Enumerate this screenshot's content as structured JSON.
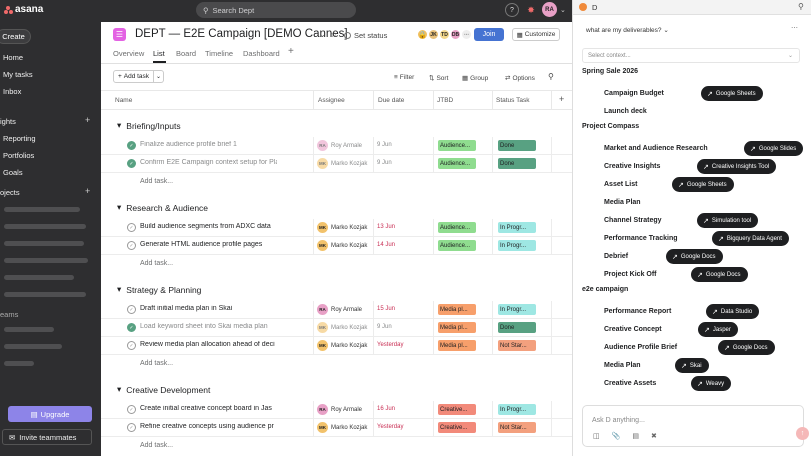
{
  "topbar": {
    "brand": "asana",
    "search_placeholder": "Search Dept",
    "help": "?",
    "user_initials": "RA"
  },
  "sidebar": {
    "create": "Create",
    "nav": [
      "Home",
      "My tasks",
      "Inbox"
    ],
    "insights_label": "ights",
    "insights": [
      "Reporting",
      "Portfolios",
      "Goals"
    ],
    "projects_label": "ojects",
    "teams_label": "eams",
    "upgrade": "Upgrade",
    "invite": "Invite teammates"
  },
  "project": {
    "title": "DEPT — E2E Campaign [DEMO Cannes]",
    "set_status": "Set status",
    "members": [
      "JK",
      "TD",
      "DB"
    ],
    "join": "Join",
    "customize": "Customize",
    "tabs": [
      "Overview",
      "List",
      "Board",
      "Timeline",
      "Dashboard"
    ]
  },
  "toolbar": {
    "add_task": "Add task",
    "filter": "Filter",
    "sort": "Sort",
    "group": "Group",
    "options": "Options"
  },
  "columns": [
    "Name",
    "Assignee",
    "Due date",
    "JTBD",
    "Status Task"
  ],
  "sections": [
    {
      "title": "Briefing/Inputs",
      "tasks": [
        {
          "name": "Finalize audience profile brief",
          "extra": "1",
          "done": true,
          "initials": "RA",
          "assignee": "Roy Armale",
          "due": "9 Jun",
          "red": false,
          "jtbd": "Audience...",
          "status": "Done"
        },
        {
          "name": "Confirm E2E Campaign context setup for Pla",
          "extra": "",
          "done": true,
          "initials": "MK",
          "assignee": "Marko Kozjak",
          "due": "9 Jun",
          "red": false,
          "jtbd": "Audience...",
          "status": "Done"
        }
      ]
    },
    {
      "title": "Research & Audience",
      "tasks": [
        {
          "name": "Build audience segments from ADXC data",
          "extra": "",
          "done": false,
          "initials": "MK",
          "assignee": "Marko Kozjak",
          "due": "13 Jun",
          "red": true,
          "jtbd": "Audience...",
          "status": "In Progr..."
        },
        {
          "name": "Generate HTML audience profile pages",
          "extra": "",
          "done": false,
          "initials": "MK",
          "assignee": "Marko Kozjak",
          "due": "14 Jun",
          "red": true,
          "jtbd": "Audience...",
          "status": "In Progr..."
        }
      ]
    },
    {
      "title": "Strategy & Planning",
      "tasks": [
        {
          "name": "Draft initial media plan in Skai",
          "extra": "",
          "done": false,
          "initials": "RA",
          "assignee": "Roy Armale",
          "due": "15 Jun",
          "red": true,
          "jtbd": "Media pl...",
          "status": "In Progr..."
        },
        {
          "name": "Load keyword sheet into Skai media plan",
          "extra": "",
          "done": true,
          "initials": "MK",
          "assignee": "Marko Kozjak",
          "due": "9 Jun",
          "red": false,
          "jtbd": "Media pl...",
          "status": "Done"
        },
        {
          "name": "Review media plan allocation ahead of deci",
          "extra": "",
          "done": false,
          "initials": "MK",
          "assignee": "Marko Kozjak",
          "due": "Yesterday",
          "red": true,
          "jtbd": "Media pl...",
          "status": "Not Star..."
        }
      ]
    },
    {
      "title": "Creative Development",
      "tasks": [
        {
          "name": "Create initial creative concept board in Jas",
          "extra": "",
          "done": false,
          "initials": "RA",
          "assignee": "Roy Armale",
          "due": "16 Jun",
          "red": true,
          "jtbd": "Creative...",
          "status": "In Progr..."
        },
        {
          "name": "Refine creative concepts using audience pr",
          "extra": "",
          "done": false,
          "initials": "MK",
          "assignee": "Marko Kozjak",
          "due": "Yesterday",
          "red": true,
          "jtbd": "Creative...",
          "status": "Not Star..."
        }
      ]
    }
  ],
  "add_task_inline": "Add task...",
  "colors": {
    "done": "#58a182",
    "in_progress": "#9ee7e3",
    "not_started": "#f3a07e",
    "audience": "#8fdc8f",
    "media": "#f79f6b",
    "creative": "#f28a7a",
    "red_due": "#c92f54"
  },
  "panel": {
    "title": "D",
    "question": "what are my deliverables?",
    "context_placeholder": "Select context...",
    "groups": [
      {
        "title": "Spring Sale 2026",
        "items": [
          {
            "name": "Campaign Budget",
            "tool": "Google Sheets"
          },
          {
            "name": "Launch deck",
            "tool": ""
          }
        ]
      },
      {
        "title": "Project Compass",
        "items": [
          {
            "name": "Market and Audience Research",
            "tool": "Google Slides"
          },
          {
            "name": "Creative Insights",
            "tool": "Creative Insights Tool"
          },
          {
            "name": "Asset List",
            "tool": "Google Sheets"
          },
          {
            "name": "Media Plan",
            "tool": ""
          },
          {
            "name": "Channel Strategy",
            "tool": "Simulation tool"
          },
          {
            "name": "Performance Tracking",
            "tool": "Bigquery Data Agent"
          },
          {
            "name": "Debrief",
            "tool": "Google Docs"
          },
          {
            "name": "Project Kick Off",
            "tool": "Google Docs"
          }
        ]
      },
      {
        "title": "e2e campaign",
        "items": [
          {
            "name": "Performance Report",
            "tool": "Data Studio"
          },
          {
            "name": "Creative Concept",
            "tool": "Jasper"
          },
          {
            "name": "Audience Profile Brief",
            "tool": "Google Docs"
          },
          {
            "name": "Media Plan",
            "tool": "Skai"
          },
          {
            "name": "Creative Assets",
            "tool": "Weavy"
          }
        ]
      }
    ],
    "input_placeholder": "Ask D anything..."
  }
}
